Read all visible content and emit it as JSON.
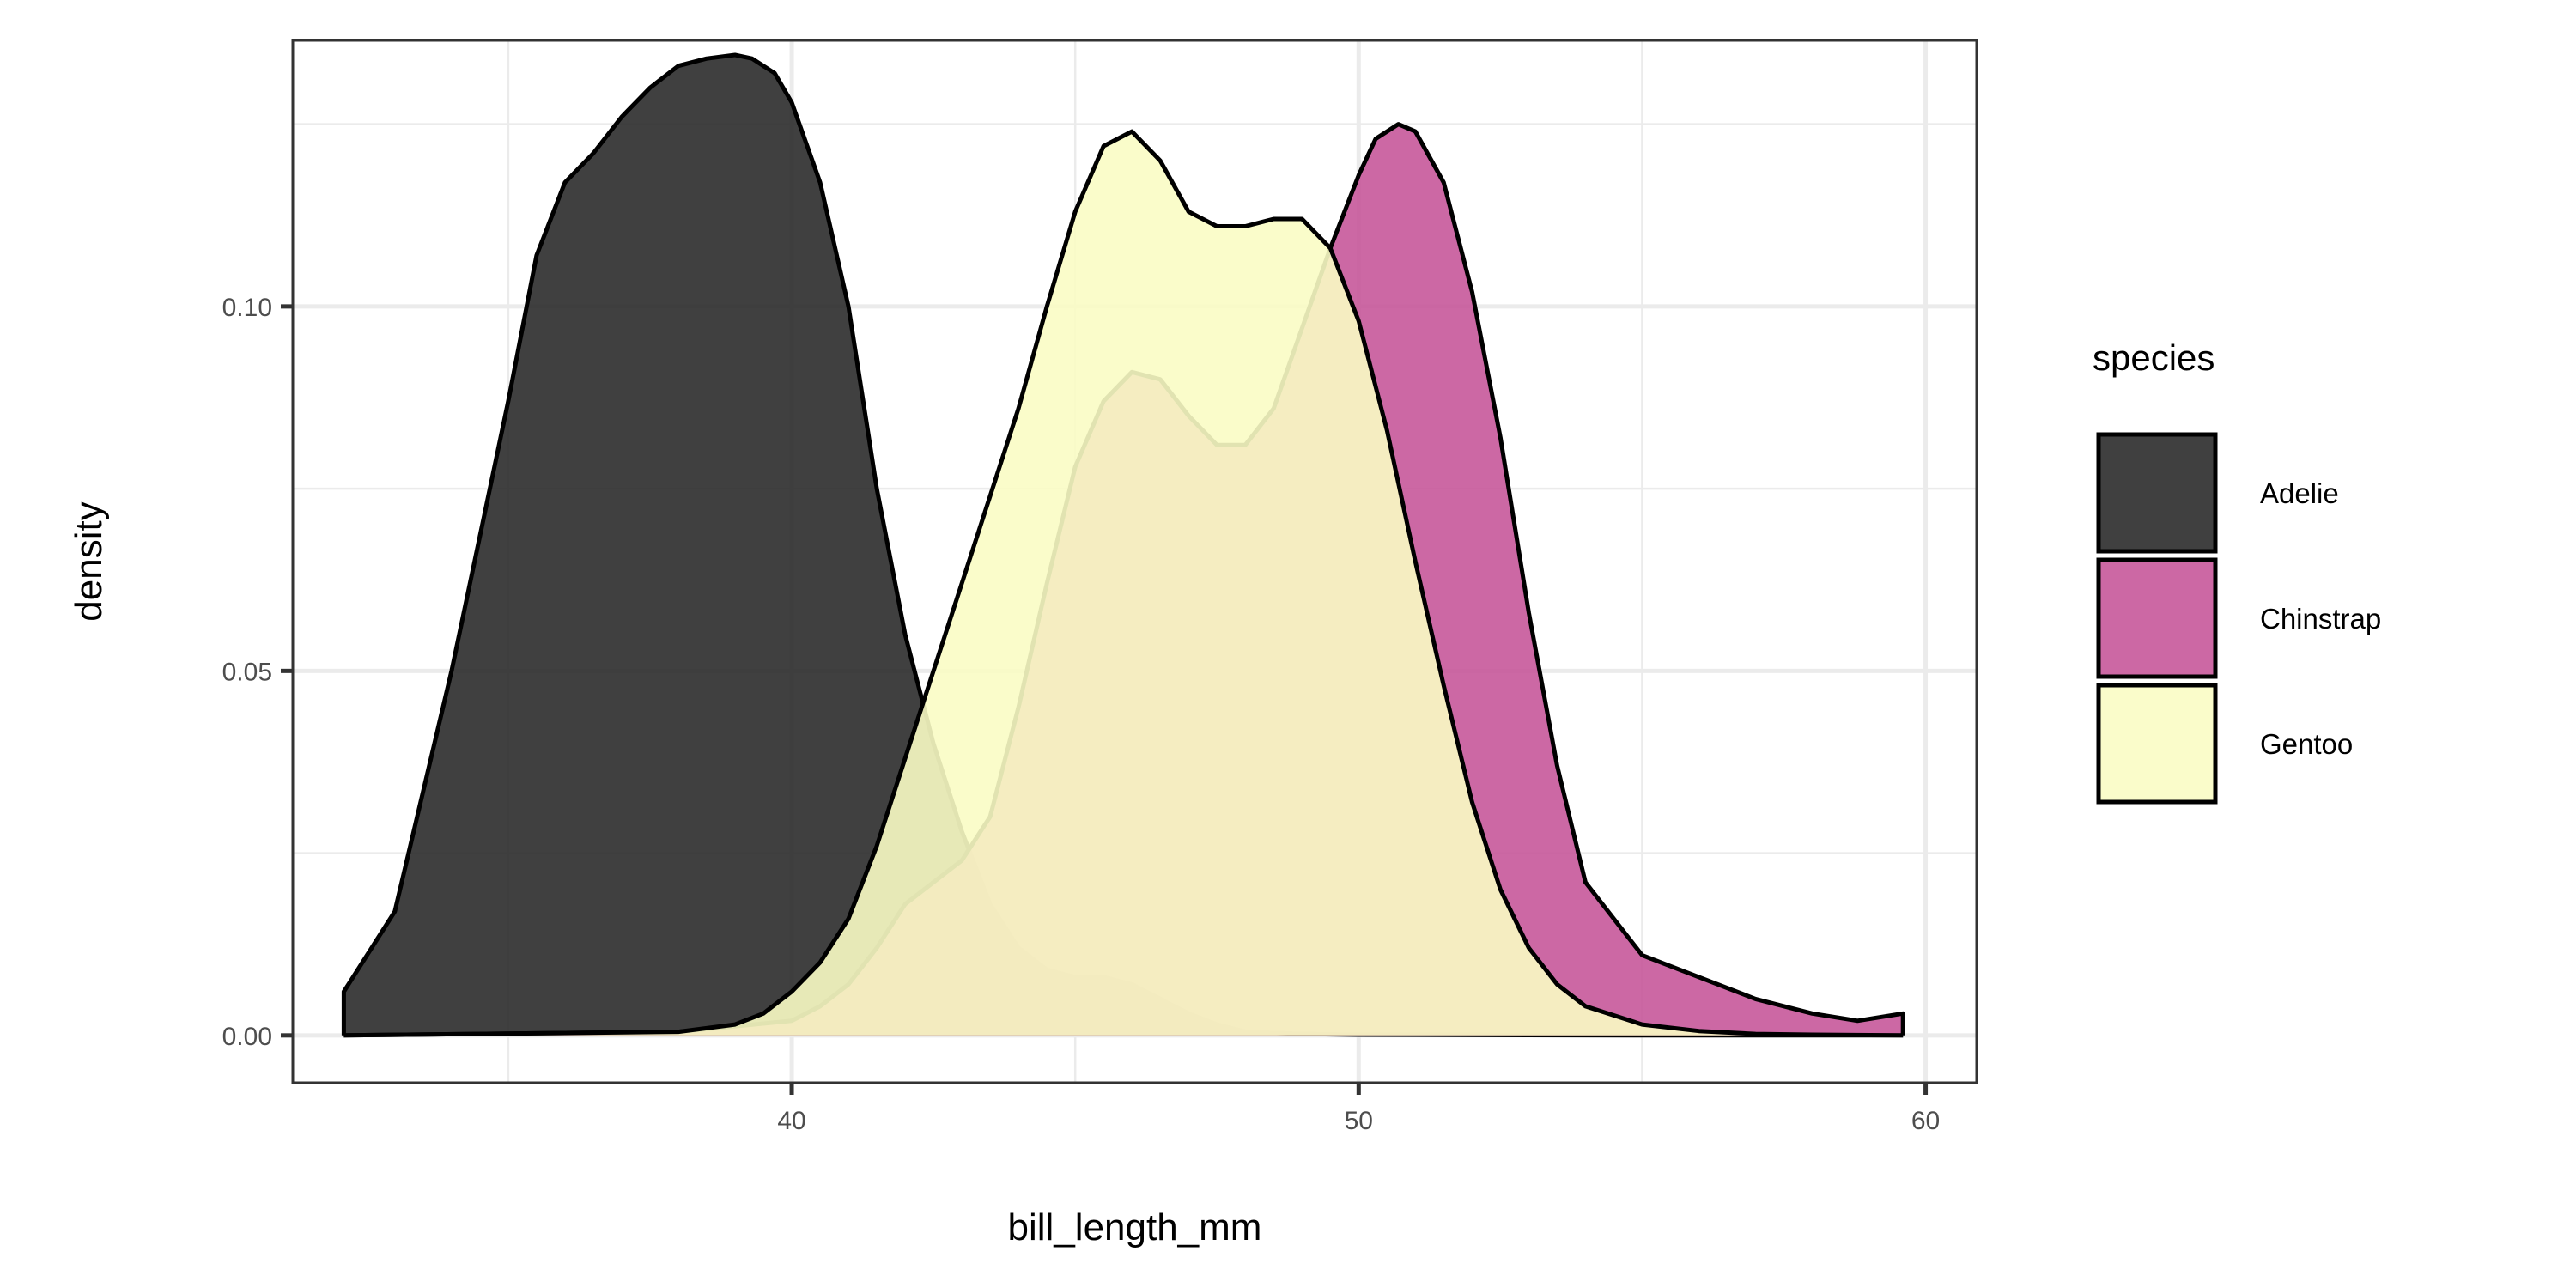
{
  "chart_data": {
    "type": "area",
    "subtype": "density",
    "xlabel": "bill_length_mm",
    "ylabel": "density",
    "xlim": [
      31.2,
      60.9
    ],
    "ylim": [
      -0.0065,
      0.1365
    ],
    "x_ticks": [
      40,
      50,
      60
    ],
    "x_tick_labels": [
      "40",
      "50",
      "60"
    ],
    "y_ticks": [
      0.0,
      0.05,
      0.1
    ],
    "y_tick_labels": [
      "0.00",
      "0.05",
      "0.10"
    ],
    "grid": true,
    "legend_title": "species",
    "legend_position": "right",
    "series": [
      {
        "name": "Adelie",
        "color": "#2b2b2b",
        "x": [
          32.1,
          33,
          34,
          35,
          35.5,
          36,
          36.5,
          37,
          37.5,
          38,
          38.5,
          39,
          39.3,
          39.7,
          40,
          40.5,
          41,
          41.5,
          42,
          42.5,
          43,
          43.5,
          44,
          44.5,
          45,
          45.5,
          46,
          46.5,
          47,
          47.5,
          48,
          49,
          50,
          55,
          59.6
        ],
        "values": [
          0.006,
          0.017,
          0.05,
          0.087,
          0.107,
          0.117,
          0.121,
          0.126,
          0.13,
          0.133,
          0.134,
          0.1345,
          0.134,
          0.132,
          0.128,
          0.117,
          0.1,
          0.075,
          0.055,
          0.04,
          0.028,
          0.018,
          0.012,
          0.009,
          0.008,
          0.008,
          0.007,
          0.005,
          0.003,
          0.0015,
          0.0005,
          0.0002,
          0.0001,
          0.0,
          0.0
        ]
      },
      {
        "name": "Chinstrap",
        "color": "#c7589a",
        "x": [
          32.1,
          38,
          40,
          40.5,
          41,
          41.5,
          42,
          42.5,
          43,
          43.5,
          44,
          44.5,
          45,
          45.5,
          46,
          46.5,
          47,
          47.5,
          48,
          48.5,
          49,
          49.5,
          50,
          50.3,
          50.7,
          51,
          51.5,
          52,
          52.5,
          53,
          53.5,
          54,
          55,
          56,
          57,
          58,
          58.8,
          59.6
        ],
        "values": [
          0.0,
          0.0005,
          0.002,
          0.004,
          0.007,
          0.012,
          0.018,
          0.021,
          0.024,
          0.03,
          0.045,
          0.062,
          0.078,
          0.087,
          0.091,
          0.09,
          0.085,
          0.081,
          0.081,
          0.086,
          0.097,
          0.108,
          0.118,
          0.123,
          0.125,
          0.124,
          0.117,
          0.102,
          0.082,
          0.058,
          0.037,
          0.021,
          0.011,
          0.008,
          0.005,
          0.003,
          0.002,
          0.003
        ]
      },
      {
        "name": "Gentoo",
        "color": "#fafcc4",
        "x": [
          32.1,
          38,
          39,
          39.5,
          40,
          40.5,
          41,
          41.5,
          42,
          42.5,
          43,
          43.5,
          44,
          44.5,
          45,
          45.5,
          46,
          46.5,
          47,
          47.5,
          48,
          48.5,
          49,
          49.5,
          50,
          50.5,
          51,
          51.5,
          52,
          52.5,
          53,
          53.5,
          54,
          55,
          56,
          57,
          58,
          59.6
        ],
        "values": [
          0.0,
          0.0005,
          0.0015,
          0.003,
          0.006,
          0.01,
          0.016,
          0.026,
          0.038,
          0.05,
          0.062,
          0.074,
          0.086,
          0.1,
          0.113,
          0.122,
          0.124,
          0.12,
          0.113,
          0.111,
          0.111,
          0.112,
          0.112,
          0.108,
          0.098,
          0.083,
          0.065,
          0.048,
          0.032,
          0.02,
          0.012,
          0.007,
          0.004,
          0.0015,
          0.0006,
          0.0002,
          0.0001,
          0.0
        ]
      }
    ]
  }
}
